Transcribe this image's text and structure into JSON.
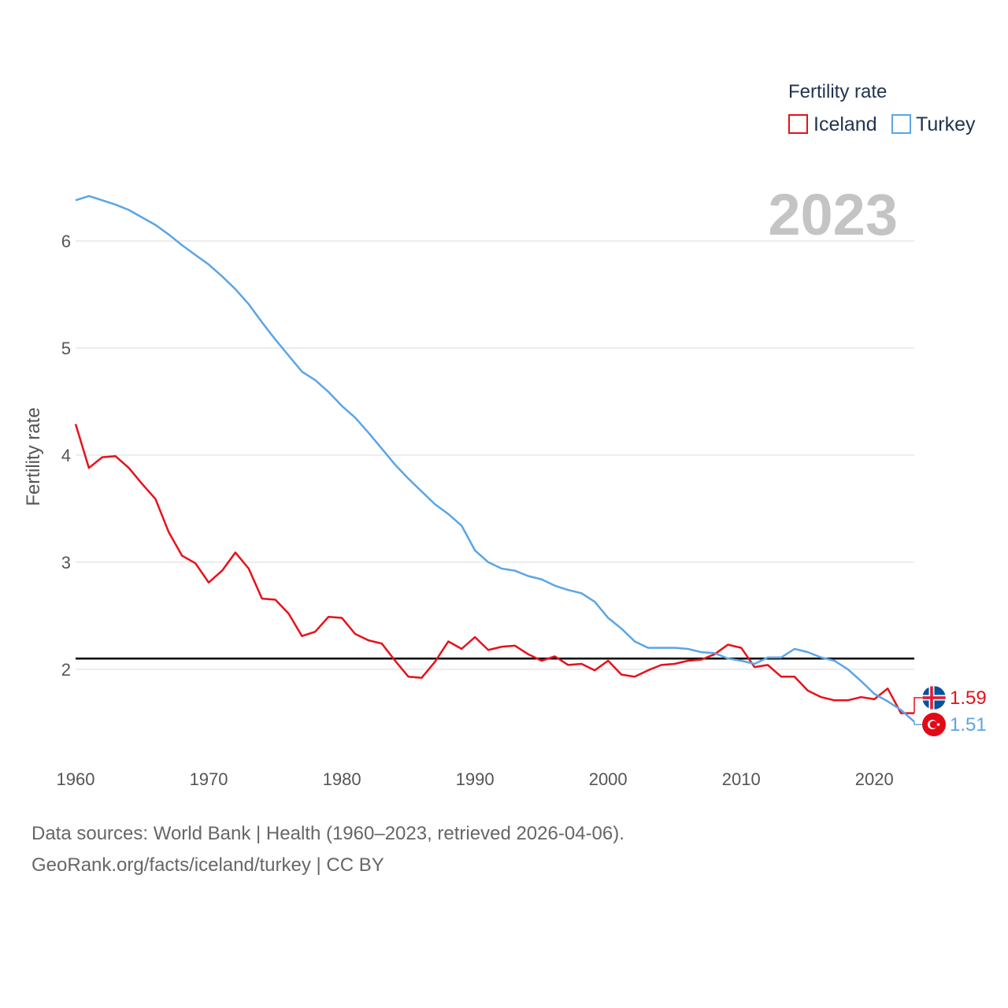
{
  "chart_data": {
    "type": "line",
    "year_label": "2023",
    "ylabel": "Fertility rate",
    "legend_title": "Fertility rate",
    "xlim": [
      1960,
      2023
    ],
    "ylim": [
      1.3,
      6.5
    ],
    "x_ticks": [
      1960,
      1970,
      1980,
      1990,
      2000,
      2010,
      2020
    ],
    "y_ticks": [
      2,
      3,
      4,
      5,
      6
    ],
    "reference_line": 2.1,
    "x": [
      1960,
      1961,
      1962,
      1963,
      1964,
      1965,
      1966,
      1967,
      1968,
      1969,
      1970,
      1971,
      1972,
      1973,
      1974,
      1975,
      1976,
      1977,
      1978,
      1979,
      1980,
      1981,
      1982,
      1983,
      1984,
      1985,
      1986,
      1987,
      1988,
      1989,
      1990,
      1991,
      1992,
      1993,
      1994,
      1995,
      1996,
      1997,
      1998,
      1999,
      2000,
      2001,
      2002,
      2003,
      2004,
      2005,
      2006,
      2007,
      2008,
      2009,
      2010,
      2011,
      2012,
      2013,
      2014,
      2015,
      2016,
      2017,
      2018,
      2019,
      2020,
      2021,
      2022,
      2023
    ],
    "series": [
      {
        "name": "Iceland",
        "color": "#e8101a",
        "end_label": "1.59",
        "flag_icon": "iceland-flag-icon",
        "values": [
          4.29,
          3.88,
          3.98,
          3.99,
          3.88,
          3.73,
          3.59,
          3.28,
          3.06,
          2.99,
          2.81,
          2.92,
          3.09,
          2.94,
          2.66,
          2.65,
          2.52,
          2.31,
          2.35,
          2.49,
          2.48,
          2.33,
          2.27,
          2.24,
          2.08,
          1.93,
          1.92,
          2.07,
          2.26,
          2.19,
          2.3,
          2.18,
          2.21,
          2.22,
          2.14,
          2.08,
          2.12,
          2.04,
          2.05,
          1.99,
          2.08,
          1.95,
          1.93,
          1.99,
          2.04,
          2.05,
          2.08,
          2.09,
          2.14,
          2.23,
          2.2,
          2.02,
          2.04,
          1.93,
          1.93,
          1.8,
          1.74,
          1.71,
          1.71,
          1.74,
          1.72,
          1.82,
          1.59,
          1.59
        ]
      },
      {
        "name": "Turkey",
        "color": "#5aa5e6",
        "end_label": "1.51",
        "flag_icon": "turkey-flag-icon",
        "values": [
          6.38,
          6.42,
          6.38,
          6.34,
          6.29,
          6.22,
          6.15,
          6.06,
          5.96,
          5.87,
          5.78,
          5.67,
          5.55,
          5.41,
          5.24,
          5.08,
          4.93,
          4.78,
          4.7,
          4.59,
          4.46,
          4.35,
          4.21,
          4.06,
          3.91,
          3.78,
          3.66,
          3.54,
          3.45,
          3.34,
          3.11,
          3.0,
          2.94,
          2.92,
          2.87,
          2.84,
          2.78,
          2.74,
          2.71,
          2.63,
          2.48,
          2.38,
          2.26,
          2.2,
          2.2,
          2.2,
          2.19,
          2.16,
          2.15,
          2.1,
          2.08,
          2.05,
          2.11,
          2.11,
          2.19,
          2.16,
          2.11,
          2.08,
          2.0,
          1.89,
          1.77,
          1.7,
          1.62,
          1.51
        ]
      }
    ]
  },
  "footer": {
    "line1": "Data sources: World Bank | Health (1960–2023, retrieved 2026-04-06).",
    "line2": "GeoRank.org/facts/iceland/turkey | CC BY"
  }
}
